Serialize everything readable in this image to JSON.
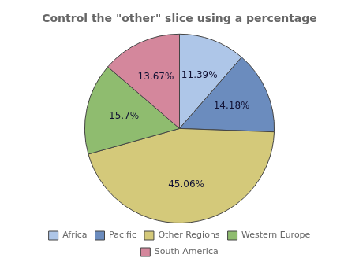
{
  "chart_data": {
    "type": "pie",
    "title": "Control the \"other\" slice using a percentage",
    "categories": [
      "Africa",
      "Pacific",
      "Other Regions",
      "Western Europe",
      "South America"
    ],
    "values": [
      11.39,
      14.18,
      45.06,
      15.7,
      13.67
    ],
    "value_labels": [
      "11.39%",
      "14.18%",
      "45.06%",
      "15.7%",
      "13.67%"
    ],
    "colors": [
      "#aec6e8",
      "#6b8cbe",
      "#d4c97a",
      "#8fbc6f",
      "#d4879c"
    ],
    "data_labels": true,
    "legend": "bottom"
  }
}
